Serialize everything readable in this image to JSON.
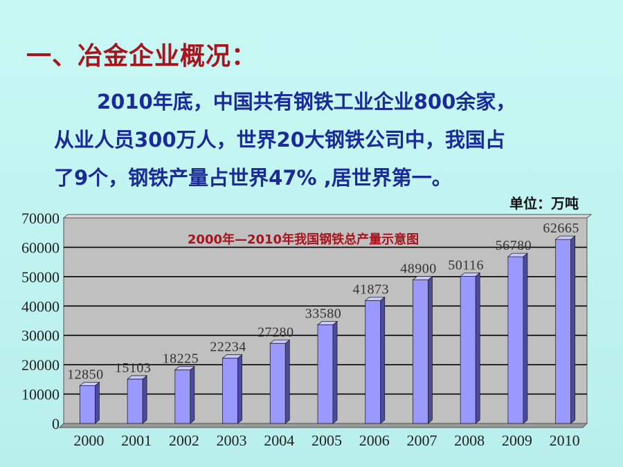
{
  "slide": {
    "heading": "一、冶金企业概况：",
    "paragraph_lines": [
      "2010年底，中国共有钢铁工业企业800余家，",
      "从业人员300万人，世界20大钢铁公司中，我国占",
      "了9个，钢铁产量占世界47% ,居世界第一。"
    ],
    "unit_label": "单位：万吨"
  },
  "colors": {
    "bar_front": "#9999ff",
    "bar_side": "#4b4b9e",
    "bar_top": "#c8c8ff",
    "plot_bg": "#c0c0c0",
    "gridline": "#000000",
    "title_color": "#a8131c"
  },
  "chart_data": {
    "type": "bar",
    "title": "2000年—2010年我国钢铁总产量示意图",
    "categories": [
      "2000",
      "2001",
      "2002",
      "2003",
      "2004",
      "2005",
      "2006",
      "2007",
      "2008",
      "2009",
      "2010"
    ],
    "values": [
      12850,
      15103,
      18225,
      22234,
      27280,
      33580,
      41873,
      48900,
      50116,
      56780,
      62665
    ],
    "ylim": [
      0,
      70000
    ],
    "yticks": [
      0,
      10000,
      20000,
      30000,
      40000,
      50000,
      60000,
      70000
    ],
    "grid": true,
    "data_labels": true,
    "xlabel": "",
    "ylabel": ""
  }
}
